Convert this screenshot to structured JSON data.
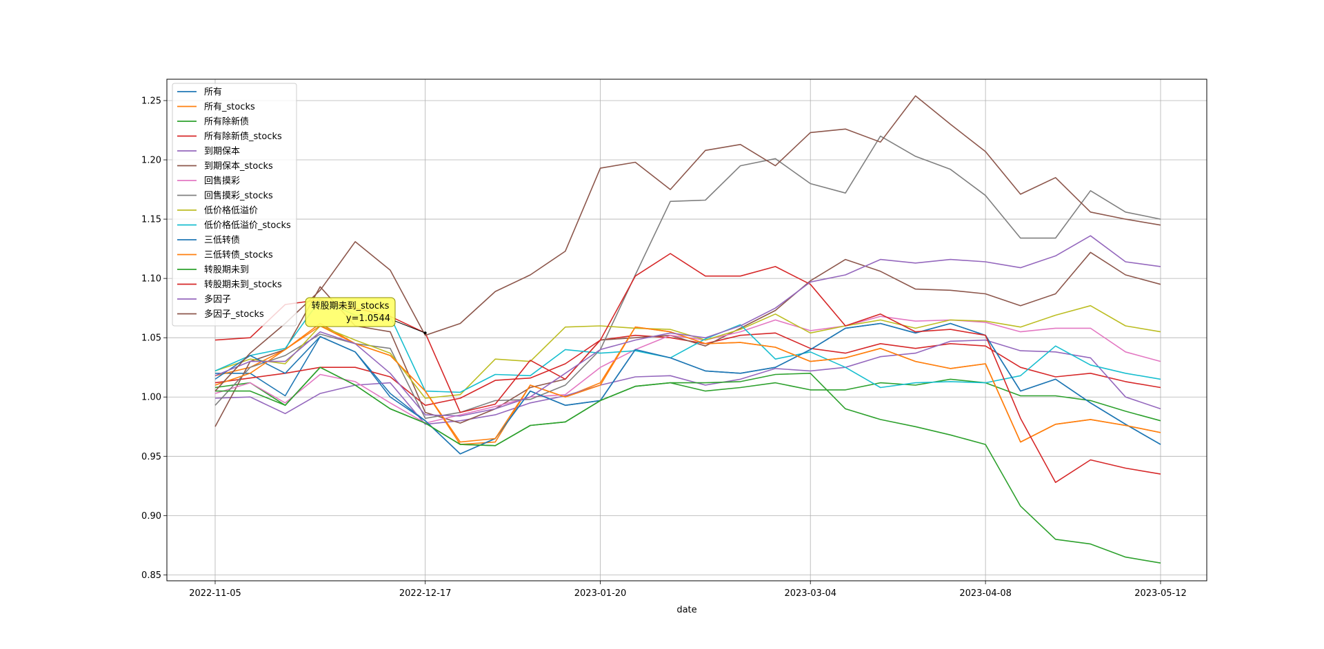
{
  "chart_data": {
    "type": "line",
    "title": "",
    "xlabel": "date",
    "ylabel": "",
    "ylim": [
      0.845,
      1.268
    ],
    "grid": true,
    "legend_position": "upper-left",
    "x": [
      "2022-11-05",
      "2022-11-12",
      "2022-11-19",
      "2022-11-26",
      "2022-12-03",
      "2022-12-10",
      "2022-12-17",
      "2022-12-24",
      "2022-12-31",
      "2023-01-07",
      "2023-01-14",
      "2023-01-20",
      "2023-01-27",
      "2023-02-03",
      "2023-02-10",
      "2023-02-17",
      "2023-02-24",
      "2023-03-04",
      "2023-03-11",
      "2023-03-18",
      "2023-03-25",
      "2023-04-01",
      "2023-04-08",
      "2023-04-15",
      "2023-04-22",
      "2023-04-29",
      "2023-05-06",
      "2023-05-12"
    ],
    "xticks": [
      "2022-11-05",
      "2022-12-17",
      "2023-01-20",
      "2023-03-04",
      "2023-04-08",
      "2023-05-12"
    ],
    "xtick_index": [
      0,
      6,
      11,
      17,
      22,
      27
    ],
    "yticks": [
      "0.85",
      "0.90",
      "0.95",
      "1.00",
      "1.05",
      "1.10",
      "1.15",
      "1.20",
      "1.25"
    ],
    "ytick_values": [
      0.85,
      0.9,
      0.95,
      1.0,
      1.05,
      1.1,
      1.15,
      1.2,
      1.25
    ],
    "series": [
      {
        "name": "所有",
        "color": "#1f77b4",
        "values": [
          1.02,
          1.02,
          1.001,
          1.051,
          1.038,
          1.003,
          0.98,
          0.952,
          0.965,
          1.005,
          0.993,
          0.997,
          1.04,
          1.033,
          1.022,
          1.02,
          1.025,
          1.04,
          1.058,
          1.062,
          1.054,
          1.062,
          1.052,
          1.005,
          1.015,
          0.995,
          0.977,
          0.96
        ]
      },
      {
        "name": "所有_stocks",
        "color": "#ff7f0e",
        "values": [
          1.018,
          1.025,
          1.04,
          1.062,
          1.045,
          1.035,
          1.005,
          0.96,
          0.962,
          1.01,
          1.0,
          1.012,
          1.059,
          1.055,
          1.045,
          1.046,
          1.042,
          1.03,
          1.033,
          1.041,
          1.03,
          1.024,
          1.028,
          0.962,
          0.977,
          0.981,
          0.976,
          0.97
        ]
      },
      {
        "name": "所有除新债",
        "color": "#2ca02c",
        "values": [
          1.008,
          1.012,
          0.993,
          1.025,
          1.01,
          0.99,
          0.978,
          0.96,
          0.959,
          0.976,
          0.979,
          0.997,
          1.009,
          1.012,
          1.005,
          1.008,
          1.012,
          1.006,
          1.006,
          1.012,
          1.01,
          1.015,
          1.012,
          1.001,
          1.001,
          0.997,
          0.988,
          0.98
        ]
      },
      {
        "name": "所有除新债_stocks",
        "color": "#d62728",
        "values": [
          1.012,
          1.016,
          1.02,
          1.025,
          1.025,
          1.017,
          0.993,
          0.999,
          1.014,
          1.016,
          1.028,
          1.048,
          1.052,
          1.05,
          1.045,
          1.052,
          1.054,
          1.041,
          1.037,
          1.045,
          1.041,
          1.045,
          1.043,
          1.025,
          1.017,
          1.02,
          1.013,
          1.008
        ]
      },
      {
        "name": "到期保本",
        "color": "#9467bd",
        "values": [
          0.999,
          1.0,
          0.986,
          1.003,
          1.01,
          1.012,
          0.977,
          0.98,
          0.985,
          0.995,
          1.001,
          1.01,
          1.017,
          1.018,
          1.01,
          1.015,
          1.024,
          1.022,
          1.025,
          1.034,
          1.037,
          1.047,
          1.048,
          1.039,
          1.038,
          1.033,
          1.0,
          0.99
        ]
      },
      {
        "name": "到期保本_stocks",
        "color": "#8c564b",
        "values": [
          0.975,
          1.03,
          1.04,
          1.093,
          1.06,
          1.055,
          0.987,
          0.978,
          0.99,
          1.008,
          1.015,
          1.048,
          1.05,
          1.052,
          1.043,
          1.058,
          1.073,
          1.098,
          1.116,
          1.106,
          1.091,
          1.09,
          1.087,
          1.077,
          1.087,
          1.122,
          1.103,
          1.095
        ]
      },
      {
        "name": "回售摸彩",
        "color": "#e377c2",
        "values": [
          1.003,
          1.012,
          0.995,
          1.019,
          1.013,
          0.995,
          0.978,
          0.985,
          0.992,
          1.0,
          1.002,
          1.025,
          1.04,
          1.052,
          1.048,
          1.055,
          1.065,
          1.056,
          1.06,
          1.068,
          1.064,
          1.065,
          1.063,
          1.055,
          1.058,
          1.058,
          1.038,
          1.03
        ]
      },
      {
        "name": "回售摸彩_stocks",
        "color": "#7f7f7f",
        "values": [
          0.993,
          1.025,
          1.035,
          1.053,
          1.045,
          1.041,
          0.982,
          0.987,
          0.997,
          0.998,
          1.01,
          1.04,
          1.103,
          1.165,
          1.166,
          1.195,
          1.201,
          1.18,
          1.172,
          1.22,
          1.203,
          1.192,
          1.17,
          1.134,
          1.134,
          1.174,
          1.156,
          1.15
        ]
      },
      {
        "name": "低价格低溢价",
        "color": "#bcbd22",
        "values": [
          1.022,
          1.032,
          1.028,
          1.06,
          1.048,
          1.037,
          0.999,
          1.002,
          1.032,
          1.03,
          1.059,
          1.06,
          1.058,
          1.057,
          1.048,
          1.057,
          1.07,
          1.054,
          1.06,
          1.065,
          1.058,
          1.065,
          1.064,
          1.059,
          1.069,
          1.077,
          1.06,
          1.055
        ]
      },
      {
        "name": "低价格低溢价_stocks",
        "color": "#17becf",
        "values": [
          1.022,
          1.035,
          1.041,
          1.082,
          1.069,
          1.068,
          1.005,
          1.004,
          1.019,
          1.018,
          1.04,
          1.037,
          1.039,
          1.033,
          1.049,
          1.061,
          1.032,
          1.038,
          1.025,
          1.008,
          1.012,
          1.013,
          1.012,
          1.018,
          1.043,
          1.027,
          1.02,
          1.015
        ]
      },
      {
        "name": "三低转债",
        "color": "#1f77b4",
        "values": [
          1.015,
          1.035,
          1.02,
          1.051,
          1.038,
          1.0,
          0.98,
          0.952,
          0.965,
          1.005,
          0.993,
          0.997,
          1.04,
          1.033,
          1.022,
          1.02,
          1.025,
          1.04,
          1.058,
          1.062,
          1.054,
          1.062,
          1.052,
          1.005,
          1.015,
          0.995,
          0.977,
          0.96
        ]
      },
      {
        "name": "三低转债_stocks",
        "color": "#ff7f0e",
        "values": [
          1.01,
          1.02,
          1.04,
          1.06,
          1.045,
          1.035,
          1.005,
          0.962,
          0.965,
          1.01,
          1.0,
          1.01,
          1.059,
          1.055,
          1.045,
          1.046,
          1.042,
          1.03,
          1.033,
          1.041,
          1.03,
          1.024,
          1.028,
          0.962,
          0.977,
          0.981,
          0.976,
          0.97
        ]
      },
      {
        "name": "转股期未到",
        "color": "#2ca02c",
        "values": [
          1.005,
          1.005,
          0.993,
          1.025,
          1.01,
          0.99,
          0.978,
          0.96,
          0.959,
          0.976,
          0.979,
          0.997,
          1.009,
          1.012,
          1.012,
          1.013,
          1.019,
          1.02,
          0.99,
          0.981,
          0.975,
          0.968,
          0.96,
          0.908,
          0.88,
          0.876,
          0.865,
          0.86
        ]
      },
      {
        "name": "转股期未到_stocks",
        "color": "#d62728",
        "values": [
          1.048,
          1.05,
          1.078,
          1.082,
          1.075,
          1.068,
          1.054,
          0.987,
          0.994,
          1.031,
          1.015,
          1.048,
          1.102,
          1.121,
          1.102,
          1.102,
          1.11,
          1.095,
          1.06,
          1.07,
          1.055,
          1.057,
          1.052,
          0.982,
          0.928,
          0.947,
          0.94,
          0.935
        ]
      },
      {
        "name": "多因子",
        "color": "#9467bd",
        "values": [
          1.018,
          1.03,
          1.03,
          1.055,
          1.045,
          1.02,
          0.985,
          0.984,
          0.99,
          1.0,
          1.02,
          1.04,
          1.048,
          1.054,
          1.05,
          1.06,
          1.075,
          1.097,
          1.103,
          1.116,
          1.113,
          1.116,
          1.114,
          1.109,
          1.119,
          1.136,
          1.114,
          1.11
        ]
      },
      {
        "name": "多因子_stocks",
        "color": "#8c564b",
        "values": [
          1.005,
          1.037,
          1.062,
          1.09,
          1.131,
          1.107,
          1.052,
          1.062,
          1.089,
          1.103,
          1.123,
          1.193,
          1.198,
          1.175,
          1.208,
          1.213,
          1.195,
          1.223,
          1.226,
          1.215,
          1.254,
          1.23,
          1.207,
          1.171,
          1.185,
          1.156,
          1.15,
          1.145
        ]
      }
    ],
    "annotation": {
      "title": "转股期未到_stocks",
      "value": "y=1.0544",
      "series_index": 13,
      "point_index": 6,
      "box_color": "#ffff66"
    }
  }
}
